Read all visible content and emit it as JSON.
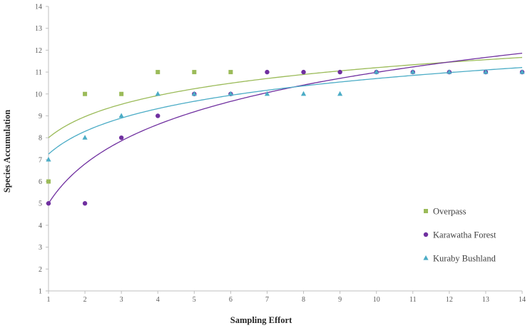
{
  "chart_data": {
    "type": "scatter",
    "xlabel": "Sampling Effort",
    "ylabel": "Species Accumulation",
    "xlim": [
      1,
      14
    ],
    "ylim": [
      1,
      14
    ],
    "x_ticks": [
      "1",
      "2",
      "3",
      "4",
      "5",
      "6",
      "7",
      "8",
      "9",
      "10",
      "11",
      "12",
      "13",
      "14"
    ],
    "y_ticks": [
      "1",
      "2",
      "3",
      "4",
      "5",
      "6",
      "7",
      "8",
      "9",
      "10",
      "11",
      "12",
      "13",
      "14"
    ],
    "grid": false,
    "legend_position": "right",
    "series": [
      {
        "name": "Overpass",
        "marker": "square",
        "color": "#9bbb59",
        "x": [
          1,
          2,
          3,
          4,
          5,
          6
        ],
        "y": [
          6,
          10,
          10,
          11,
          11,
          11
        ],
        "trend": {
          "type": "logarithmic",
          "a": 8.0,
          "b": 1.39
        }
      },
      {
        "name": "Karawatha Forest",
        "marker": "circle",
        "color": "#7030a0",
        "x": [
          1,
          2,
          3,
          4,
          5,
          6,
          7,
          8,
          9,
          10,
          11,
          12,
          13,
          14
        ],
        "y": [
          5,
          5,
          8,
          9,
          10,
          10,
          11,
          11,
          11,
          11,
          11,
          11,
          11,
          11
        ],
        "trend": {
          "type": "logarithmic",
          "a": 5.0,
          "b": 2.6
        }
      },
      {
        "name": "Kuraby Bushland",
        "marker": "triangle",
        "color": "#4bacc6",
        "x": [
          1,
          2,
          3,
          4,
          5,
          6,
          7,
          8,
          9,
          10,
          11,
          12,
          13,
          14
        ],
        "y": [
          7,
          8,
          9,
          10,
          10,
          10,
          10,
          10,
          10,
          11,
          11,
          11,
          11,
          11
        ],
        "trend": {
          "type": "logarithmic",
          "a": 7.25,
          "b": 1.5
        }
      }
    ]
  }
}
